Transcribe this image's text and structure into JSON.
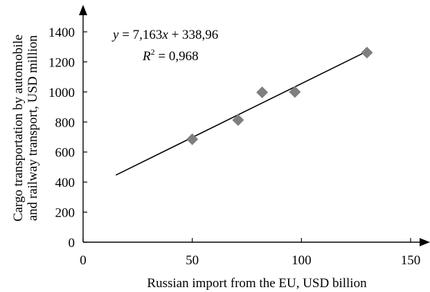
{
  "chart_data": {
    "type": "scatter",
    "xlabel": "Russian import from the EU, USD billion",
    "ylabel_lines": [
      "Cargo transportation by automobile",
      "and railway transport, USD million"
    ],
    "xlim": [
      0,
      150
    ],
    "ylim": [
      0,
      1400
    ],
    "x_ticks": [
      0,
      50,
      100,
      150
    ],
    "y_ticks": [
      0,
      200,
      400,
      600,
      800,
      1000,
      1200,
      1400
    ],
    "grid": false,
    "marker": "diamond",
    "marker_color": "#7f7f7f",
    "line_color": "#000000",
    "points": [
      {
        "x": 50,
        "y": 685
      },
      {
        "x": 71,
        "y": 813
      },
      {
        "x": 82,
        "y": 997
      },
      {
        "x": 97,
        "y": 1000
      },
      {
        "x": 130,
        "y": 1262
      }
    ],
    "trendline": {
      "slope": 7.163,
      "intercept": 338.96,
      "x_start": 15,
      "x_end": 130,
      "equation": {
        "y": "y",
        "eq_rest": " = 7,163",
        "x": "x",
        "tail": " + 338,96"
      },
      "r2": {
        "r": "R",
        "sup": "2",
        "value": " = 0,968"
      }
    }
  }
}
